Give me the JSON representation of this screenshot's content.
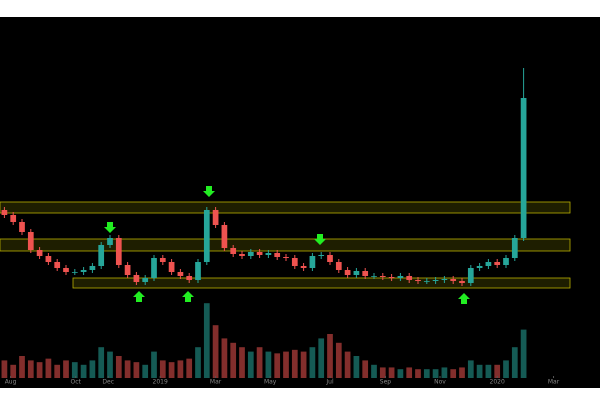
{
  "chart_data": {
    "type": "candlestick",
    "open": [
      90,
      85,
      78,
      68,
      50,
      44,
      38,
      32,
      28,
      28,
      30,
      34,
      55,
      62,
      35,
      25,
      18,
      22,
      42,
      38,
      28,
      24,
      20,
      38,
      90,
      75,
      52,
      46,
      44,
      48,
      45,
      47,
      43,
      42,
      34,
      32,
      44,
      45,
      38,
      30,
      25,
      29,
      24,
      24,
      23,
      22,
      24,
      20,
      19,
      19,
      20,
      21,
      19,
      17,
      32,
      34,
      38,
      35,
      42,
      62
    ],
    "high": [
      93,
      88,
      81,
      71,
      53,
      47,
      41,
      35,
      31,
      33,
      37,
      58,
      65,
      65,
      38,
      28,
      25,
      45,
      45,
      41,
      31,
      27,
      41,
      93,
      93,
      78,
      55,
      49,
      51,
      51,
      50,
      50,
      46,
      45,
      37,
      47,
      48,
      48,
      41,
      33,
      32,
      32,
      27,
      27,
      26,
      27,
      27,
      23,
      22,
      23,
      24,
      24,
      22,
      35,
      37,
      41,
      41,
      45,
      65,
      232
    ],
    "low": [
      82,
      75,
      65,
      47,
      41,
      35,
      29,
      25,
      25,
      25,
      27,
      31,
      52,
      32,
      22,
      15,
      15,
      19,
      35,
      25,
      21,
      17,
      17,
      35,
      72,
      49,
      43,
      41,
      41,
      42,
      42,
      40,
      39,
      31,
      29,
      29,
      41,
      35,
      27,
      22,
      22,
      21,
      21,
      20,
      19,
      19,
      17,
      16,
      16,
      16,
      17,
      16,
      14,
      14,
      29,
      31,
      32,
      32,
      39,
      59
    ],
    "close": [
      85,
      78,
      68,
      50,
      44,
      38,
      32,
      28,
      28,
      30,
      34,
      55,
      62,
      35,
      25,
      18,
      22,
      42,
      38,
      28,
      24,
      20,
      38,
      90,
      75,
      52,
      46,
      44,
      48,
      45,
      47,
      43,
      42,
      34,
      32,
      44,
      45,
      38,
      30,
      25,
      29,
      24,
      24,
      23,
      22,
      24,
      20,
      19,
      19,
      20,
      21,
      19,
      17,
      32,
      34,
      38,
      35,
      42,
      62,
      202
    ],
    "volume": {
      "values": [
        20,
        15,
        25,
        20,
        18,
        22,
        15,
        20,
        18,
        15,
        20,
        35,
        30,
        25,
        20,
        18,
        15,
        30,
        20,
        18,
        20,
        22,
        35,
        85,
        60,
        45,
        40,
        35,
        30,
        35,
        30,
        28,
        30,
        32,
        30,
        35,
        45,
        50,
        40,
        30,
        25,
        20,
        15,
        12,
        12,
        10,
        12,
        10,
        10,
        10,
        12,
        10,
        12,
        20,
        15,
        15,
        15,
        20,
        35,
        55
      ],
      "ylim": [
        0,
        100
      ]
    },
    "ylim": [
      0,
      240
    ],
    "xlim": [
      -0.5,
      67
    ],
    "xticks": [
      {
        "value": 0.7,
        "label": "Aug"
      },
      {
        "value": 8.1,
        "label": "Oct"
      },
      {
        "value": 11.8,
        "label": "Dec"
      },
      {
        "value": 17.7,
        "label": "2019"
      },
      {
        "value": 24,
        "label": "Mar"
      },
      {
        "value": 30.2,
        "label": "May"
      },
      {
        "value": 37,
        "label": "Jul"
      },
      {
        "value": 43.3,
        "label": "Sep"
      },
      {
        "value": 49.5,
        "label": "Nov"
      },
      {
        "value": 56,
        "label": "2020"
      },
      {
        "value": 62.4,
        "label": "Mar"
      }
    ],
    "up_color": "#26a69a",
    "down_color": "#ef5350"
  }
}
